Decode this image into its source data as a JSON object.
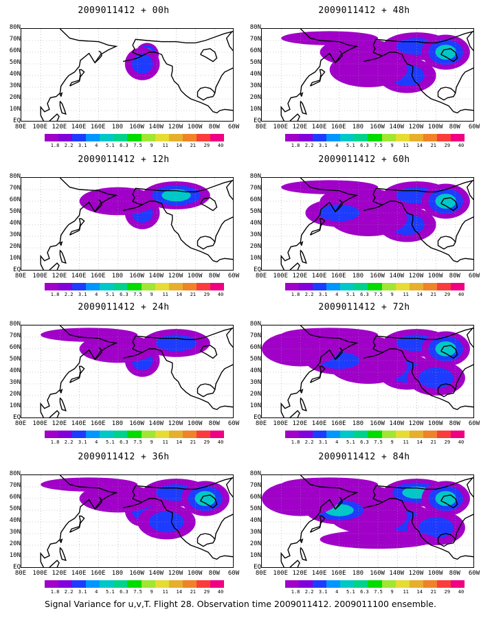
{
  "colors": {
    "scale": [
      "#a000c8",
      "#8200dc",
      "#1e3cff",
      "#0096ff",
      "#00c8c8",
      "#00d28c",
      "#00dc00",
      "#a0e632",
      "#e6dc32",
      "#e6af2d",
      "#f08228",
      "#fa3c3c",
      "#f00082"
    ],
    "coastline": "#000000",
    "frame": "#000000",
    "grid": "#9a9a9a"
  },
  "colorbar_labels": [
    "1.8",
    "2.2",
    "3.1",
    "4",
    "5.1",
    "6.3",
    "7.5",
    "9",
    "11",
    "14",
    "21",
    "29",
    "40"
  ],
  "lat_labels": [
    "80N",
    "70N",
    "60N",
    "50N",
    "40N",
    "30N",
    "20N",
    "10N",
    "EQ"
  ],
  "lon_labels": [
    "80E",
    "100E",
    "120E",
    "140E",
    "160E",
    "180",
    "160W",
    "140W",
    "120W",
    "100W",
    "80W",
    "60W"
  ],
  "panels": [
    {
      "title": "2009011412 + 00h",
      "coverage": 0.1,
      "intensity": 0.45
    },
    {
      "title": "2009011412 + 48h",
      "coverage": 0.55,
      "intensity": 0.3
    },
    {
      "title": "2009011412 + 12h",
      "coverage": 0.25,
      "intensity": 0.4
    },
    {
      "title": "2009011412 + 60h",
      "coverage": 0.6,
      "intensity": 0.3
    },
    {
      "title": "2009011412 + 24h",
      "coverage": 0.35,
      "intensity": 0.35
    },
    {
      "title": "2009011412 + 72h",
      "coverage": 0.7,
      "intensity": 0.35
    },
    {
      "title": "2009011412 + 36h",
      "coverage": 0.45,
      "intensity": 0.3
    },
    {
      "title": "2009011412 + 84h",
      "coverage": 0.8,
      "intensity": 0.4
    }
  ],
  "footer": "Signal Variance for u,v,T. Flight 28. Observation time 2009011412. 2009011100 ensemble."
}
